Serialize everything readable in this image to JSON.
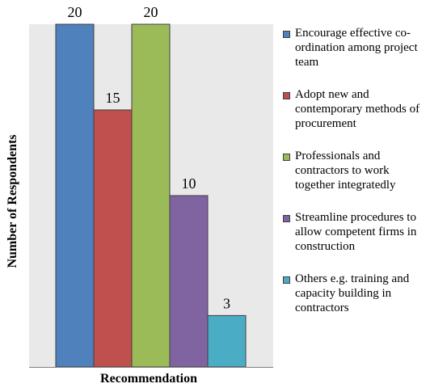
{
  "chart_data": {
    "type": "bar",
    "xlabel": "Recommendation",
    "ylabel": "Number of Respondents",
    "ylim": [
      0,
      20
    ],
    "grid": false,
    "legend_position": "right",
    "series": [
      {
        "name": "Encourage effective co-ordination among project team",
        "value": 20,
        "color": "#4f81bd"
      },
      {
        "name": "Adopt new and contemporary methods of procurement",
        "value": 15,
        "color": "#c0504d"
      },
      {
        "name": "Professionals and contractors to work together integratedly",
        "value": 20,
        "color": "#9bbb59"
      },
      {
        "name": "Streamline procedures to allow competent firms in construction",
        "value": 10,
        "color": "#8064a2"
      },
      {
        "name": "Others e.g. training and capacity building in contractors",
        "value": 3,
        "color": "#4bacc6"
      }
    ],
    "plot_background": "#e9e9e9",
    "axis_color": "#808080"
  }
}
